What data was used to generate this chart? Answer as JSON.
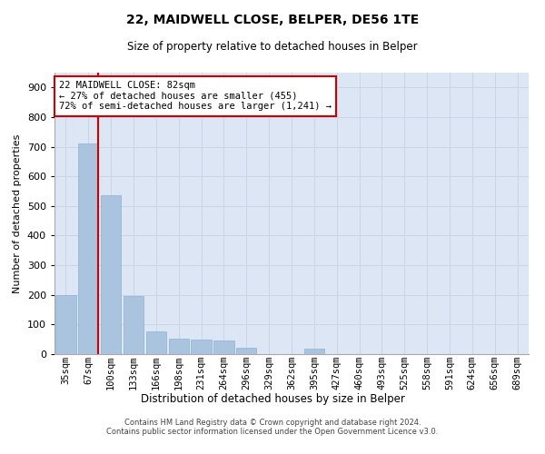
{
  "title_line1": "22, MAIDWELL CLOSE, BELPER, DE56 1TE",
  "title_line2": "Size of property relative to detached houses in Belper",
  "xlabel": "Distribution of detached houses by size in Belper",
  "ylabel": "Number of detached properties",
  "categories": [
    "35sqm",
    "67sqm",
    "100sqm",
    "133sqm",
    "166sqm",
    "198sqm",
    "231sqm",
    "264sqm",
    "296sqm",
    "329sqm",
    "362sqm",
    "395sqm",
    "427sqm",
    "460sqm",
    "493sqm",
    "525sqm",
    "558sqm",
    "591sqm",
    "624sqm",
    "656sqm",
    "689sqm"
  ],
  "values": [
    200,
    710,
    535,
    195,
    78,
    52,
    48,
    47,
    22,
    0,
    0,
    18,
    0,
    0,
    0,
    0,
    0,
    0,
    0,
    0,
    0
  ],
  "bar_color": "#aac4e0",
  "bar_edge_color": "#8ab4d4",
  "property_line_index": 1,
  "annotation_text_line1": "22 MAIDWELL CLOSE: 82sqm",
  "annotation_text_line2": "← 27% of detached houses are smaller (455)",
  "annotation_text_line3": "72% of semi-detached houses are larger (1,241) →",
  "annotation_box_facecolor": "#ffffff",
  "annotation_border_color": "#cc0000",
  "property_line_color": "#cc0000",
  "ylim_max": 950,
  "yticks": [
    0,
    100,
    200,
    300,
    400,
    500,
    600,
    700,
    800,
    900
  ],
  "grid_color": "#c8d4e8",
  "background_color": "#dde6f4",
  "footer_line1": "Contains HM Land Registry data © Crown copyright and database right 2024.",
  "footer_line2": "Contains public sector information licensed under the Open Government Licence v3.0."
}
